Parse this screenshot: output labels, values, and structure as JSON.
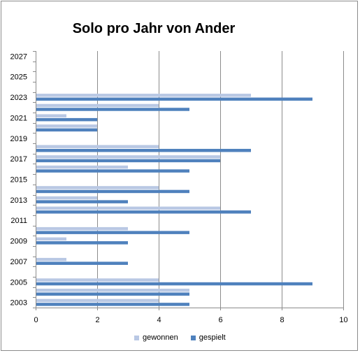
{
  "chart_data": {
    "type": "bar",
    "orientation": "horizontal",
    "title": "Solo pro Jahr von Ander",
    "xlabel": "",
    "ylabel": "",
    "xlim": [
      0,
      10
    ],
    "x_ticks": [
      0,
      2,
      4,
      6,
      8,
      10
    ],
    "grid": "vertical",
    "legend_position": "bottom",
    "categories": [
      2003,
      2004,
      2005,
      2006,
      2007,
      2008,
      2009,
      2010,
      2011,
      2012,
      2013,
      2014,
      2015,
      2016,
      2017,
      2018,
      2019,
      2020,
      2021,
      2022,
      2023,
      2024,
      2025,
      2026,
      2027
    ],
    "category_labels": [
      "2003",
      "",
      "2005",
      "",
      "2007",
      "",
      "2009",
      "",
      "2011",
      "",
      "2013",
      "",
      "2015",
      "",
      "2017",
      "",
      "2019",
      "",
      "2021",
      "",
      "2023",
      "",
      "2025",
      "",
      "2027"
    ],
    "series": [
      {
        "name": "gewonnen",
        "color": "#b9c8e4",
        "values": [
          4,
          5,
          4,
          0,
          1,
          0,
          1,
          3,
          0,
          6,
          2,
          4,
          0,
          3,
          6,
          4,
          0,
          2,
          1,
          4,
          7,
          0,
          0,
          0,
          0
        ]
      },
      {
        "name": "gespielt",
        "color": "#4f81bd",
        "values": [
          5,
          5,
          9,
          0,
          3,
          0,
          3,
          5,
          0,
          7,
          3,
          5,
          0,
          5,
          6,
          7,
          0,
          2,
          2,
          5,
          9,
          0,
          0,
          0,
          0
        ]
      }
    ]
  }
}
